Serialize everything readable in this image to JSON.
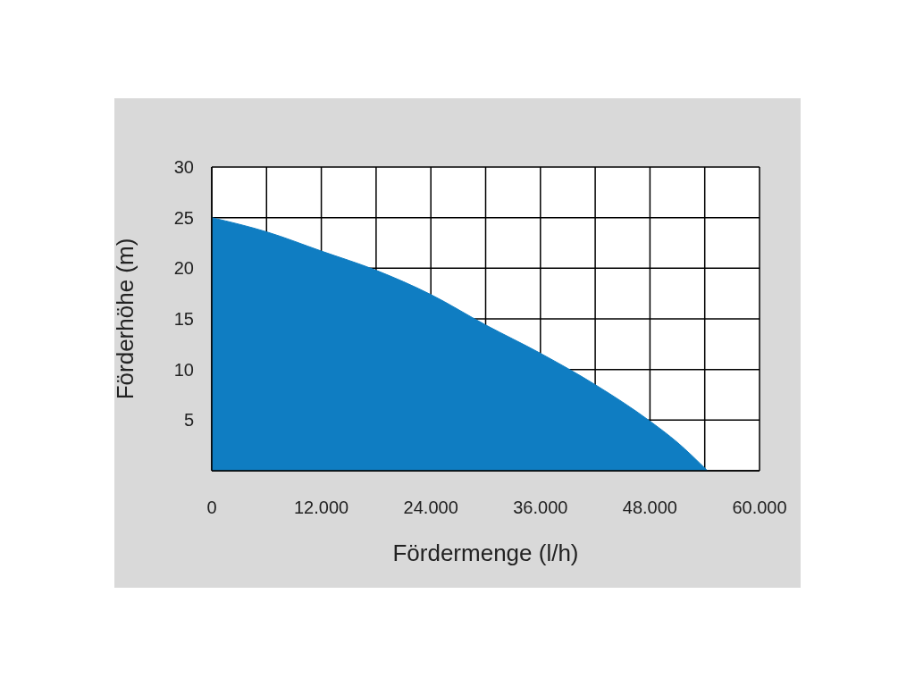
{
  "chart_data": {
    "type": "area",
    "xlabel": "Fördermenge (l/h)",
    "ylabel": "Förderhöhe (m)",
    "x": [
      0,
      6000,
      12000,
      18000,
      24000,
      30000,
      36000,
      42000,
      48000,
      51000,
      54300
    ],
    "series": [
      {
        "color": "#0f7dc2",
        "values": [
          25,
          23.6,
          21.7,
          19.8,
          17.4,
          14.4,
          11.6,
          8.5,
          4.9,
          2.8,
          0
        ]
      }
    ],
    "xlim": [
      0,
      60000
    ],
    "xticks": [
      0,
      {
        "value": 6000,
        "label": null
      },
      {
        "value": 12000,
        "label": "12.000"
      },
      {
        "value": 18000,
        "label": null
      },
      {
        "value": 24000,
        "label": "24.000"
      },
      {
        "value": 30000,
        "label": null
      },
      {
        "value": 36000,
        "label": "36.000"
      },
      {
        "value": 42000,
        "label": null
      },
      {
        "value": 48000,
        "label": "48.000"
      },
      {
        "value": 54000,
        "label": null
      },
      {
        "value": 60000,
        "label": "60.000"
      }
    ],
    "ylim": [
      0,
      30
    ],
    "yticks": [
      {
        "value": 0,
        "label": null
      },
      5,
      10,
      15,
      20,
      25,
      30
    ],
    "grid": true,
    "legend": false
  }
}
